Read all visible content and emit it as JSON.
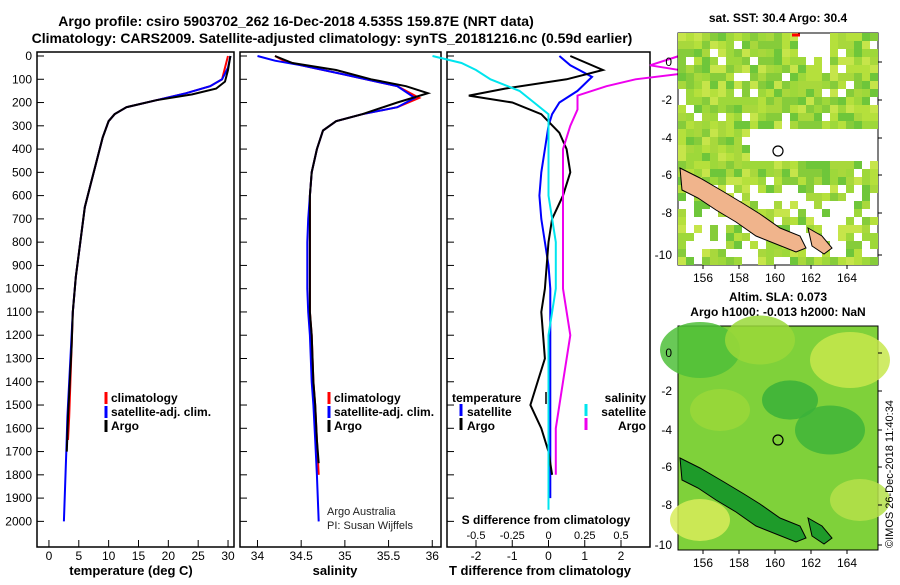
{
  "header": {
    "line1": "Argo profile: csiro 5903702_262 16-Dec-2018 4.535S 159.87E (NRT data)",
    "line2": "Climatology: CARS2009. Satellite-adjusted climatology: synTS_20181216.nc (0.59d earlier)"
  },
  "colors": {
    "climatology": "#ff0000",
    "satellite": "#0000ff",
    "argo": "#000000",
    "sal_satellite": "#00e5ee",
    "sal_argo": "#ee00ee"
  },
  "depth_axis": {
    "ticks": [
      0,
      100,
      200,
      300,
      400,
      500,
      600,
      700,
      800,
      900,
      1000,
      1100,
      1200,
      1300,
      1400,
      1500,
      1600,
      1700,
      1800,
      1900,
      2000
    ],
    "range": [
      0,
      2050
    ]
  },
  "panels": {
    "temperature": {
      "xlabel": "temperature (deg C)",
      "xticks": [
        0,
        5,
        10,
        15,
        20,
        25,
        30
      ],
      "xrange": [
        -2,
        31
      ],
      "legend": [
        "climatology",
        "satellite-adj. clim.",
        "Argo"
      ]
    },
    "salinity": {
      "xlabel": "salinity",
      "xticks": [
        "34",
        "34.5",
        "35",
        "35.5",
        "36"
      ],
      "xrange": [
        33.8,
        36.1
      ],
      "legend": [
        "climatology",
        "satellite-adj. clim.",
        "Argo"
      ],
      "credit1": "Argo Australia",
      "credit2": "PI: Susan Wijffels"
    },
    "difference": {
      "xlabel": "T difference from climatology",
      "xticks": [
        "-2",
        "-1",
        "0",
        "1",
        "2"
      ],
      "xrange": [
        -2.8,
        2.8
      ],
      "sub_title": "S difference from climatology",
      "sub_ticks": [
        "-0.5",
        "-0.25",
        "0",
        "0.25",
        "0.5"
      ],
      "legend_left_title": "temperature",
      "legend_left": [
        "satellite",
        "Argo"
      ],
      "legend_right_title": "salinity",
      "legend_right": [
        "satellite",
        "Argo"
      ]
    }
  },
  "maps": {
    "top_title": "sat. SST: 30.4 Argo: 30.4",
    "bottom_title1": "Altim. SLA: 0.073",
    "bottom_title2": "Argo h1000: -0.013 h2000: NaN",
    "xticks": [
      "156",
      "158",
      "160",
      "162",
      "164"
    ],
    "yticks": [
      "0",
      "-2",
      "-4",
      "-6",
      "-8",
      "-10"
    ]
  },
  "footer": "©IMOS 26-Dec-2018 11:40:34",
  "chart_data": [
    {
      "type": "line",
      "title": "",
      "xlabel": "temperature (deg C)",
      "ylabel": "",
      "xlim": [
        -2,
        31
      ],
      "ylim": [
        2050,
        0
      ],
      "series": [
        {
          "name": "climatology",
          "x": [
            30,
            29.5,
            29,
            27,
            23,
            18,
            13,
            11,
            10,
            9,
            8,
            7,
            6,
            5.5,
            5,
            4.5,
            4,
            3.8,
            3.6,
            3.4,
            3.2
          ],
          "y": [
            0,
            50,
            100,
            130,
            160,
            190,
            220,
            250,
            280,
            350,
            450,
            550,
            650,
            750,
            850,
            950,
            1100,
            1250,
            1400,
            1550,
            1650
          ]
        },
        {
          "name": "satellite-adj. clim.",
          "x": [
            30.4,
            30,
            29,
            27,
            23,
            18,
            13,
            11,
            10,
            9,
            8,
            7,
            6,
            5.5,
            5,
            4.5,
            4,
            3.7,
            3.4,
            3.1,
            2.9,
            2.7,
            2.5
          ],
          "y": [
            0,
            50,
            100,
            130,
            160,
            190,
            220,
            250,
            280,
            350,
            450,
            550,
            650,
            750,
            850,
            950,
            1100,
            1250,
            1400,
            1550,
            1700,
            1850,
            2000
          ]
        },
        {
          "name": "Argo",
          "x": [
            30.4,
            30,
            29.5,
            28,
            24,
            18,
            13,
            11,
            10,
            9,
            8,
            7,
            6,
            5.5,
            5,
            4.5,
            4,
            3.8,
            3.5,
            3.2,
            3
          ],
          "y": [
            0,
            60,
            110,
            140,
            165,
            190,
            220,
            250,
            280,
            350,
            450,
            550,
            650,
            750,
            850,
            950,
            1100,
            1250,
            1400,
            1550,
            1700
          ]
        }
      ]
    },
    {
      "type": "line",
      "title": "",
      "xlabel": "salinity",
      "ylabel": "",
      "xlim": [
        33.8,
        36.1
      ],
      "ylim": [
        2050,
        0
      ],
      "series": [
        {
          "name": "climatology",
          "x": [
            34.2,
            34.3,
            34.5,
            35.0,
            35.6,
            35.85,
            35.6,
            35.2,
            34.9,
            34.75,
            34.68,
            34.62,
            34.6,
            34.6,
            34.6,
            34.6,
            34.6,
            34.6,
            34.62,
            34.64,
            34.66,
            34.68,
            34.7
          ],
          "y": [
            0,
            20,
            40,
            80,
            130,
            180,
            220,
            250,
            280,
            320,
            400,
            500,
            600,
            700,
            800,
            900,
            1000,
            1100,
            1200,
            1400,
            1500,
            1650,
            1800
          ]
        },
        {
          "name": "satellite-adj. clim.",
          "x": [
            34.0,
            34.2,
            34.5,
            35.0,
            35.6,
            35.8,
            35.6,
            35.2,
            34.9,
            34.75,
            34.68,
            34.62,
            34.6,
            34.58,
            34.57,
            34.57,
            34.57,
            34.58,
            34.6,
            34.62,
            34.64,
            34.66,
            34.68,
            34.7
          ],
          "y": [
            0,
            20,
            40,
            80,
            130,
            180,
            220,
            250,
            280,
            320,
            400,
            500,
            600,
            700,
            800,
            900,
            1000,
            1100,
            1200,
            1400,
            1500,
            1650,
            1800,
            2000
          ]
        },
        {
          "name": "Argo",
          "x": [
            34.2,
            34.4,
            34.9,
            35.3,
            35.7,
            35.95,
            35.6,
            35.2,
            34.9,
            34.75,
            34.68,
            34.62,
            34.6,
            34.6,
            34.6,
            34.6,
            34.6,
            34.6,
            34.62,
            34.64,
            34.66,
            34.68,
            34.7
          ],
          "y": [
            0,
            30,
            60,
            100,
            130,
            160,
            200,
            250,
            280,
            320,
            400,
            500,
            600,
            700,
            800,
            900,
            1000,
            1100,
            1200,
            1400,
            1500,
            1650,
            1750
          ]
        }
      ]
    },
    {
      "type": "line",
      "title": "",
      "xlabel": "T difference from climatology",
      "ylabel": "",
      "xlim": [
        -2.8,
        2.8
      ],
      "ylim": [
        2050,
        0
      ],
      "series": [
        {
          "name": "temperature satellite",
          "x": [
            0.3,
            0.6,
            1.2,
            0.8,
            0.3,
            0.1,
            0,
            -0.1,
            -0.2,
            -0.25,
            -0.2,
            -0.1,
            0,
            0.05,
            0.05,
            0.05,
            0.05,
            0.05,
            0.05,
            0.05,
            0.05
          ],
          "y": [
            0,
            40,
            90,
            150,
            200,
            250,
            300,
            400,
            500,
            600,
            700,
            800,
            900,
            1000,
            1100,
            1200,
            1300,
            1400,
            1500,
            1700,
            1900
          ]
        },
        {
          "name": "temperature Argo",
          "x": [
            0.6,
            1.5,
            0.5,
            -1.2,
            -2.2,
            -1.0,
            -0.2,
            0.3,
            0.5,
            0.6,
            0.4,
            0.1,
            0,
            -0.05,
            -0.1,
            -0.2,
            -0.15,
            -0.1,
            -0.3,
            -0.5,
            -0.2,
            0,
            0.1
          ],
          "y": [
            0,
            60,
            100,
            140,
            170,
            200,
            250,
            330,
            400,
            500,
            600,
            700,
            800,
            900,
            1000,
            1100,
            1200,
            1300,
            1400,
            1500,
            1600,
            1700,
            1800
          ]
        },
        {
          "name": "salinity satellite",
          "x": [
            -0.8,
            -0.6,
            -0.5,
            -0.4,
            -0.2,
            -0.1,
            0,
            0,
            0,
            0,
            0,
            0.05,
            0.05,
            0,
            0,
            0,
            0,
            0
          ],
          "y": [
            0,
            30,
            60,
            100,
            150,
            200,
            250,
            300,
            400,
            500,
            600,
            800,
            1000,
            1200,
            1400,
            1600,
            1800,
            1950
          ]
        },
        {
          "name": "salinity Argo",
          "x": [
            0.9,
            0.7,
            1.0,
            0.6,
            0.4,
            0.2,
            0.2,
            0.15,
            0.1,
            0.1,
            0.1,
            0.1,
            0.15,
            0.1,
            0.05,
            0.05,
            0.05
          ],
          "y": [
            0,
            40,
            70,
            100,
            130,
            170,
            230,
            300,
            400,
            600,
            800,
            1000,
            1200,
            1400,
            1600,
            1750,
            1800
          ]
        }
      ]
    }
  ]
}
